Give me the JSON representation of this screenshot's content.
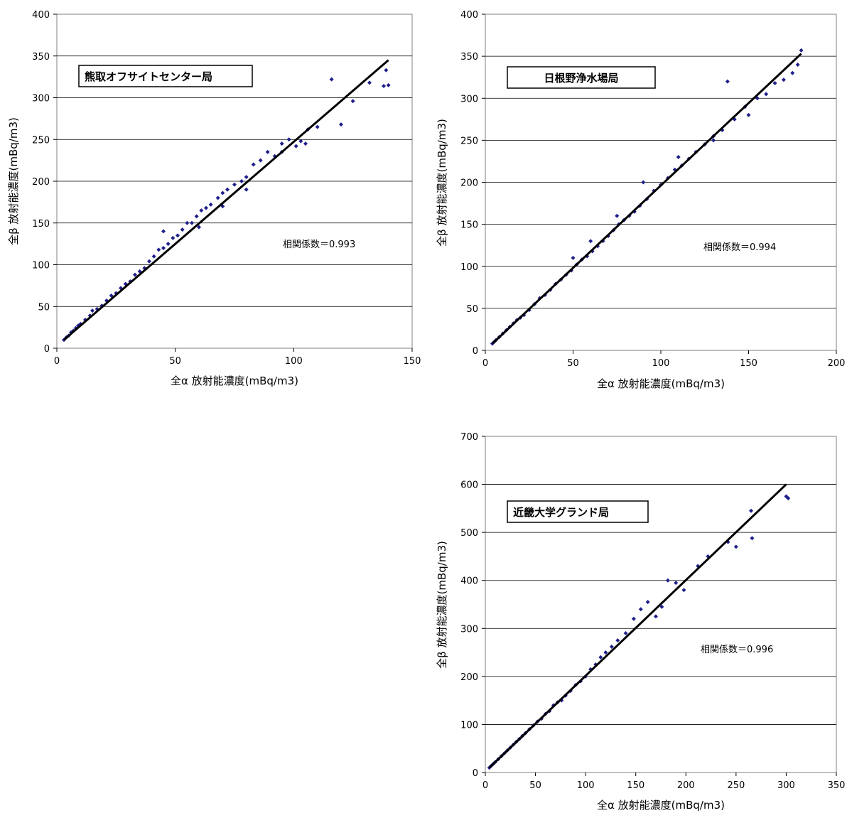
{
  "chart_data": [
    {
      "type": "scatter",
      "station": "熊取オフサイトセンター局",
      "correlation": "相関係数＝0.993",
      "xlabel": "全α 放射能濃度(mBq/m3)",
      "ylabel": "全β 放射能濃度(mBq/m3)",
      "xlim": [
        0,
        150
      ],
      "ylim": [
        0,
        400
      ],
      "xticks": [
        0,
        50,
        100,
        150
      ],
      "yticks": [
        0,
        50,
        100,
        150,
        200,
        250,
        300,
        350,
        400
      ],
      "grid": true,
      "marker_color": "#1f1f8c",
      "trend_line": {
        "x": [
          3,
          140
        ],
        "y": [
          10,
          345
        ]
      },
      "points": [
        [
          3,
          10
        ],
        [
          4,
          13
        ],
        [
          5,
          15
        ],
        [
          6,
          19
        ],
        [
          7,
          21
        ],
        [
          8,
          24
        ],
        [
          9,
          27
        ],
        [
          10,
          29
        ],
        [
          12,
          34
        ],
        [
          14,
          39
        ],
        [
          15,
          45
        ],
        [
          17,
          47
        ],
        [
          19,
          51
        ],
        [
          21,
          57
        ],
        [
          23,
          63
        ],
        [
          25,
          66
        ],
        [
          27,
          72
        ],
        [
          29,
          77
        ],
        [
          31,
          80
        ],
        [
          33,
          88
        ],
        [
          35,
          92
        ],
        [
          37,
          96
        ],
        [
          39,
          104
        ],
        [
          41,
          110
        ],
        [
          43,
          118
        ],
        [
          45,
          120
        ],
        [
          47,
          125
        ],
        [
          49,
          132
        ],
        [
          51,
          135
        ],
        [
          53,
          142
        ],
        [
          55,
          150
        ],
        [
          57,
          150
        ],
        [
          59,
          158
        ],
        [
          61,
          165
        ],
        [
          63,
          168
        ],
        [
          65,
          172
        ],
        [
          68,
          180
        ],
        [
          70,
          186
        ],
        [
          72,
          190
        ],
        [
          75,
          196
        ],
        [
          78,
          200
        ],
        [
          80,
          205
        ],
        [
          83,
          220
        ],
        [
          86,
          225
        ],
        [
          89,
          235
        ],
        [
          92,
          230
        ],
        [
          95,
          245
        ],
        [
          98,
          250
        ],
        [
          101,
          242
        ],
        [
          103,
          248
        ],
        [
          106,
          262
        ],
        [
          110,
          265
        ],
        [
          116,
          322
        ],
        [
          120,
          268
        ],
        [
          125,
          296
        ],
        [
          132,
          318
        ],
        [
          138,
          314
        ],
        [
          139,
          333
        ],
        [
          140,
          315
        ],
        [
          45,
          140
        ],
        [
          60,
          145
        ],
        [
          70,
          170
        ],
        [
          80,
          190
        ],
        [
          95,
          235
        ],
        [
          105,
          245
        ]
      ]
    },
    {
      "type": "scatter",
      "station": "日根野浄水場局",
      "correlation": "相関係数＝0.994",
      "xlabel": "全α 放射能濃度(mBq/m3)",
      "ylabel": "全β 放射能濃度(mBq/m3)",
      "xlim": [
        0,
        200
      ],
      "ylim": [
        0,
        400
      ],
      "xticks": [
        0,
        50,
        100,
        150,
        200
      ],
      "yticks": [
        0,
        50,
        100,
        150,
        200,
        250,
        300,
        350,
        400
      ],
      "grid": true,
      "marker_color": "#1f1f8c",
      "trend_line": {
        "x": [
          4,
          180
        ],
        "y": [
          8,
          353
        ]
      },
      "points": [
        [
          4,
          8
        ],
        [
          5,
          10
        ],
        [
          6,
          12
        ],
        [
          8,
          16
        ],
        [
          10,
          20
        ],
        [
          12,
          24
        ],
        [
          14,
          28
        ],
        [
          16,
          32
        ],
        [
          18,
          36
        ],
        [
          20,
          39
        ],
        [
          22,
          42
        ],
        [
          25,
          48
        ],
        [
          28,
          55
        ],
        [
          31,
          62
        ],
        [
          34,
          66
        ],
        [
          37,
          72
        ],
        [
          40,
          79
        ],
        [
          43,
          84
        ],
        [
          46,
          90
        ],
        [
          49,
          95
        ],
        [
          52,
          102
        ],
        [
          55,
          108
        ],
        [
          58,
          112
        ],
        [
          61,
          118
        ],
        [
          64,
          124
        ],
        [
          67,
          130
        ],
        [
          70,
          136
        ],
        [
          73,
          143
        ],
        [
          76,
          150
        ],
        [
          79,
          155
        ],
        [
          82,
          160
        ],
        [
          85,
          165
        ],
        [
          88,
          172
        ],
        [
          92,
          180
        ],
        [
          96,
          190
        ],
        [
          100,
          197
        ],
        [
          104,
          205
        ],
        [
          108,
          215
        ],
        [
          112,
          220
        ],
        [
          116,
          228
        ],
        [
          120,
          236
        ],
        [
          125,
          245
        ],
        [
          130,
          255
        ],
        [
          135,
          262
        ],
        [
          138,
          320
        ],
        [
          142,
          275
        ],
        [
          148,
          290
        ],
        [
          155,
          300
        ],
        [
          160,
          305
        ],
        [
          165,
          318
        ],
        [
          170,
          322
        ],
        [
          175,
          330
        ],
        [
          178,
          340
        ],
        [
          180,
          357
        ],
        [
          50,
          110
        ],
        [
          60,
          130
        ],
        [
          75,
          160
        ],
        [
          90,
          200
        ],
        [
          110,
          230
        ],
        [
          130,
          250
        ],
        [
          150,
          280
        ]
      ]
    },
    {
      "type": "scatter",
      "station": "近畿大学グランド局",
      "correlation": "相関係数＝0.996",
      "xlabel": "全α 放射能濃度(mBq/m3)",
      "ylabel": "全β 放射能濃度(mBq/m3)",
      "xlim": [
        0,
        350
      ],
      "ylim": [
        0,
        700
      ],
      "xticks": [
        0,
        50,
        100,
        150,
        200,
        250,
        300,
        350
      ],
      "yticks": [
        0,
        100,
        200,
        300,
        400,
        500,
        600,
        700
      ],
      "grid": true,
      "marker_color": "#1f1f8c",
      "trend_line": {
        "x": [
          4,
          300
        ],
        "y": [
          10,
          600
        ]
      },
      "points": [
        [
          4,
          10
        ],
        [
          6,
          14
        ],
        [
          8,
          18
        ],
        [
          10,
          22
        ],
        [
          13,
          28
        ],
        [
          16,
          34
        ],
        [
          19,
          40
        ],
        [
          22,
          46
        ],
        [
          25,
          52
        ],
        [
          28,
          58
        ],
        [
          31,
          64
        ],
        [
          34,
          70
        ],
        [
          37,
          76
        ],
        [
          40,
          82
        ],
        [
          44,
          90
        ],
        [
          48,
          98
        ],
        [
          52,
          106
        ],
        [
          56,
          112
        ],
        [
          60,
          122
        ],
        [
          64,
          128
        ],
        [
          68,
          140
        ],
        [
          72,
          146
        ],
        [
          76,
          150
        ],
        [
          80,
          160
        ],
        [
          85,
          170
        ],
        [
          90,
          182
        ],
        [
          95,
          190
        ],
        [
          100,
          200
        ],
        [
          105,
          215
        ],
        [
          110,
          225
        ],
        [
          115,
          240
        ],
        [
          120,
          250
        ],
        [
          126,
          262
        ],
        [
          132,
          275
        ],
        [
          140,
          290
        ],
        [
          148,
          320
        ],
        [
          155,
          340
        ],
        [
          162,
          355
        ],
        [
          170,
          325
        ],
        [
          176,
          345
        ],
        [
          182,
          400
        ],
        [
          190,
          395
        ],
        [
          198,
          380
        ],
        [
          212,
          430
        ],
        [
          222,
          450
        ],
        [
          242,
          480
        ],
        [
          250,
          470
        ],
        [
          265,
          545
        ],
        [
          266,
          488
        ],
        [
          300,
          575
        ],
        [
          302,
          571
        ]
      ]
    }
  ]
}
